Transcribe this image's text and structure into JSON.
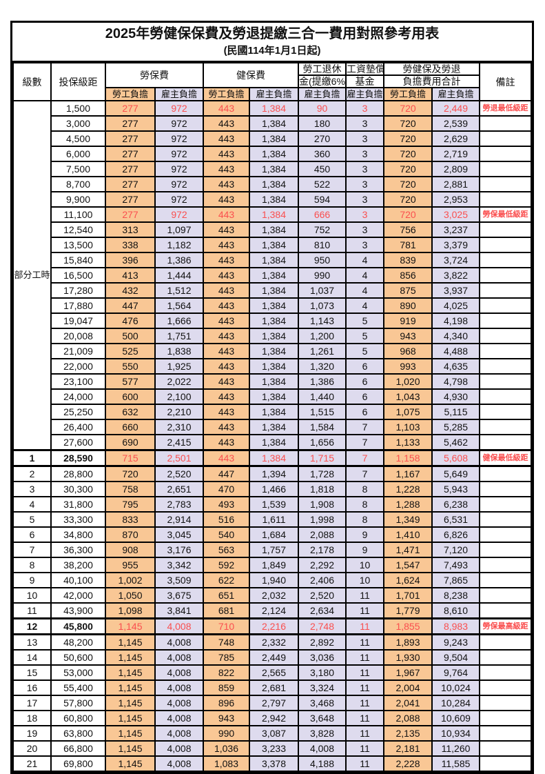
{
  "title": "2025年勞健保保費及勞退提繳三合一費用對照參考用表",
  "subtitle": "(民國114年1月1日起)",
  "colors": {
    "employee_col_bg": "#f9c795",
    "employer_col_bg": "#dedbee",
    "highlight_red": "#fa4f4f",
    "border": "#000000"
  },
  "header": {
    "level": "級數",
    "bracket": "投保級距",
    "labor_ins": "勞保費",
    "health_ins": "健保費",
    "pension_l1": "勞工退休",
    "pension_l2": "金(提繳6%)",
    "wage_fund_l1": "工資墊償",
    "wage_fund_l2": "基金",
    "total_l1": "勞健保及勞退",
    "total_l2": "負擔費用合計",
    "remark": "備註",
    "employee": "勞工負擔",
    "employer": "雇主負擔"
  },
  "part_time_label": "部分工時",
  "column_styles": [
    "orange",
    "lav",
    "orange",
    "lav",
    "lav",
    "lav",
    "orange",
    "lav"
  ],
  "rows": [
    {
      "level": "",
      "bracket": "1,500",
      "values": [
        "277",
        "972",
        "443",
        "1,384",
        "90",
        "3",
        "720",
        "2,449"
      ],
      "remark": "勞退最低級距",
      "red": true,
      "bold": false,
      "key": false
    },
    {
      "level": "",
      "bracket": "3,000",
      "values": [
        "277",
        "972",
        "443",
        "1,384",
        "180",
        "3",
        "720",
        "2,539"
      ],
      "remark": "",
      "red": false,
      "bold": false,
      "key": false
    },
    {
      "level": "",
      "bracket": "4,500",
      "values": [
        "277",
        "972",
        "443",
        "1,384",
        "270",
        "3",
        "720",
        "2,629"
      ],
      "remark": "",
      "red": false,
      "bold": false,
      "key": false
    },
    {
      "level": "",
      "bracket": "6,000",
      "values": [
        "277",
        "972",
        "443",
        "1,384",
        "360",
        "3",
        "720",
        "2,719"
      ],
      "remark": "",
      "red": false,
      "bold": false,
      "key": false
    },
    {
      "level": "",
      "bracket": "7,500",
      "values": [
        "277",
        "972",
        "443",
        "1,384",
        "450",
        "3",
        "720",
        "2,809"
      ],
      "remark": "",
      "red": false,
      "bold": false,
      "key": false
    },
    {
      "level": "",
      "bracket": "8,700",
      "values": [
        "277",
        "972",
        "443",
        "1,384",
        "522",
        "3",
        "720",
        "2,881"
      ],
      "remark": "",
      "red": false,
      "bold": false,
      "key": false
    },
    {
      "level": "",
      "bracket": "9,900",
      "values": [
        "277",
        "972",
        "443",
        "1,384",
        "594",
        "3",
        "720",
        "2,953"
      ],
      "remark": "",
      "red": false,
      "bold": false,
      "key": false
    },
    {
      "level": "",
      "bracket": "11,100",
      "values": [
        "277",
        "972",
        "443",
        "1,384",
        "666",
        "3",
        "720",
        "3,025"
      ],
      "remark": "勞保最低級距",
      "red": true,
      "bold": false,
      "key": false
    },
    {
      "level": "",
      "bracket": "12,540",
      "values": [
        "313",
        "1,097",
        "443",
        "1,384",
        "752",
        "3",
        "756",
        "3,237"
      ],
      "remark": "",
      "red": false,
      "bold": false,
      "key": false
    },
    {
      "level": "",
      "bracket": "13,500",
      "values": [
        "338",
        "1,182",
        "443",
        "1,384",
        "810",
        "3",
        "781",
        "3,379"
      ],
      "remark": "",
      "red": false,
      "bold": false,
      "key": false
    },
    {
      "level": "",
      "bracket": "15,840",
      "values": [
        "396",
        "1,386",
        "443",
        "1,384",
        "950",
        "4",
        "839",
        "3,724"
      ],
      "remark": "",
      "red": false,
      "bold": false,
      "key": false
    },
    {
      "level": "",
      "bracket": "16,500",
      "values": [
        "413",
        "1,444",
        "443",
        "1,384",
        "990",
        "4",
        "856",
        "3,822"
      ],
      "remark": "",
      "red": false,
      "bold": false,
      "key": false
    },
    {
      "level": "",
      "bracket": "17,280",
      "values": [
        "432",
        "1,512",
        "443",
        "1,384",
        "1,037",
        "4",
        "875",
        "3,937"
      ],
      "remark": "",
      "red": false,
      "bold": false,
      "key": false
    },
    {
      "level": "",
      "bracket": "17,880",
      "values": [
        "447",
        "1,564",
        "443",
        "1,384",
        "1,073",
        "4",
        "890",
        "4,025"
      ],
      "remark": "",
      "red": false,
      "bold": false,
      "key": false
    },
    {
      "level": "",
      "bracket": "19,047",
      "values": [
        "476",
        "1,666",
        "443",
        "1,384",
        "1,143",
        "5",
        "919",
        "4,198"
      ],
      "remark": "",
      "red": false,
      "bold": false,
      "key": false
    },
    {
      "level": "",
      "bracket": "20,008",
      "values": [
        "500",
        "1,751",
        "443",
        "1,384",
        "1,200",
        "5",
        "943",
        "4,340"
      ],
      "remark": "",
      "red": false,
      "bold": false,
      "key": false
    },
    {
      "level": "",
      "bracket": "21,009",
      "values": [
        "525",
        "1,838",
        "443",
        "1,384",
        "1,261",
        "5",
        "968",
        "4,488"
      ],
      "remark": "",
      "red": false,
      "bold": false,
      "key": false
    },
    {
      "level": "",
      "bracket": "22,000",
      "values": [
        "550",
        "1,925",
        "443",
        "1,384",
        "1,320",
        "6",
        "993",
        "4,635"
      ],
      "remark": "",
      "red": false,
      "bold": false,
      "key": false
    },
    {
      "level": "",
      "bracket": "23,100",
      "values": [
        "577",
        "2,022",
        "443",
        "1,384",
        "1,386",
        "6",
        "1,020",
        "4,798"
      ],
      "remark": "",
      "red": false,
      "bold": false,
      "key": false
    },
    {
      "level": "",
      "bracket": "24,000",
      "values": [
        "600",
        "2,100",
        "443",
        "1,384",
        "1,440",
        "6",
        "1,043",
        "4,930"
      ],
      "remark": "",
      "red": false,
      "bold": false,
      "key": false
    },
    {
      "level": "",
      "bracket": "25,250",
      "values": [
        "632",
        "2,210",
        "443",
        "1,384",
        "1,515",
        "6",
        "1,075",
        "5,115"
      ],
      "remark": "",
      "red": false,
      "bold": false,
      "key": false
    },
    {
      "level": "",
      "bracket": "26,400",
      "values": [
        "660",
        "2,310",
        "443",
        "1,384",
        "1,584",
        "7",
        "1,103",
        "5,285"
      ],
      "remark": "",
      "red": false,
      "bold": false,
      "key": false
    },
    {
      "level": "",
      "bracket": "27,600",
      "values": [
        "690",
        "2,415",
        "443",
        "1,384",
        "1,656",
        "7",
        "1,133",
        "5,462"
      ],
      "remark": "",
      "red": false,
      "bold": false,
      "key": false
    },
    {
      "level": "1",
      "bracket": "28,590",
      "values": [
        "715",
        "2,501",
        "443",
        "1,384",
        "1,715",
        "7",
        "1,158",
        "5,608"
      ],
      "remark": "健保最低級距",
      "red": true,
      "bold": true,
      "key": true
    },
    {
      "level": "2",
      "bracket": "28,800",
      "values": [
        "720",
        "2,520",
        "447",
        "1,394",
        "1,728",
        "7",
        "1,167",
        "5,649"
      ],
      "remark": "",
      "red": false,
      "bold": false,
      "key": false
    },
    {
      "level": "3",
      "bracket": "30,300",
      "values": [
        "758",
        "2,651",
        "470",
        "1,466",
        "1,818",
        "8",
        "1,228",
        "5,943"
      ],
      "remark": "",
      "red": false,
      "bold": false,
      "key": false
    },
    {
      "level": "4",
      "bracket": "31,800",
      "values": [
        "795",
        "2,783",
        "493",
        "1,539",
        "1,908",
        "8",
        "1,288",
        "6,238"
      ],
      "remark": "",
      "red": false,
      "bold": false,
      "key": false
    },
    {
      "level": "5",
      "bracket": "33,300",
      "values": [
        "833",
        "2,914",
        "516",
        "1,611",
        "1,998",
        "8",
        "1,349",
        "6,531"
      ],
      "remark": "",
      "red": false,
      "bold": false,
      "key": false
    },
    {
      "level": "6",
      "bracket": "34,800",
      "values": [
        "870",
        "3,045",
        "540",
        "1,684",
        "2,088",
        "9",
        "1,410",
        "6,826"
      ],
      "remark": "",
      "red": false,
      "bold": false,
      "key": false
    },
    {
      "level": "7",
      "bracket": "36,300",
      "values": [
        "908",
        "3,176",
        "563",
        "1,757",
        "2,178",
        "9",
        "1,471",
        "7,120"
      ],
      "remark": "",
      "red": false,
      "bold": false,
      "key": false
    },
    {
      "level": "8",
      "bracket": "38,200",
      "values": [
        "955",
        "3,342",
        "592",
        "1,849",
        "2,292",
        "10",
        "1,547",
        "7,493"
      ],
      "remark": "",
      "red": false,
      "bold": false,
      "key": false
    },
    {
      "level": "9",
      "bracket": "40,100",
      "values": [
        "1,002",
        "3,509",
        "622",
        "1,940",
        "2,406",
        "10",
        "1,624",
        "7,865"
      ],
      "remark": "",
      "red": false,
      "bold": false,
      "key": false
    },
    {
      "level": "10",
      "bracket": "42,000",
      "values": [
        "1,050",
        "3,675",
        "651",
        "2,032",
        "2,520",
        "11",
        "1,701",
        "8,238"
      ],
      "remark": "",
      "red": false,
      "bold": false,
      "key": false
    },
    {
      "level": "11",
      "bracket": "43,900",
      "values": [
        "1,098",
        "3,841",
        "681",
        "2,124",
        "2,634",
        "11",
        "1,779",
        "8,610"
      ],
      "remark": "",
      "red": false,
      "bold": false,
      "key": false
    },
    {
      "level": "12",
      "bracket": "45,800",
      "values": [
        "1,145",
        "4,008",
        "710",
        "2,216",
        "2,748",
        "11",
        "1,855",
        "8,983"
      ],
      "remark": "勞保最高級距",
      "red": true,
      "bold": true,
      "key": true
    },
    {
      "level": "13",
      "bracket": "48,200",
      "values": [
        "1,145",
        "4,008",
        "748",
        "2,332",
        "2,892",
        "11",
        "1,893",
        "9,243"
      ],
      "remark": "",
      "red": false,
      "bold": false,
      "key": false
    },
    {
      "level": "14",
      "bracket": "50,600",
      "values": [
        "1,145",
        "4,008",
        "785",
        "2,449",
        "3,036",
        "11",
        "1,930",
        "9,504"
      ],
      "remark": "",
      "red": false,
      "bold": false,
      "key": false
    },
    {
      "level": "15",
      "bracket": "53,000",
      "values": [
        "1,145",
        "4,008",
        "822",
        "2,565",
        "3,180",
        "11",
        "1,967",
        "9,764"
      ],
      "remark": "",
      "red": false,
      "bold": false,
      "key": false
    },
    {
      "level": "16",
      "bracket": "55,400",
      "values": [
        "1,145",
        "4,008",
        "859",
        "2,681",
        "3,324",
        "11",
        "2,004",
        "10,024"
      ],
      "remark": "",
      "red": false,
      "bold": false,
      "key": false
    },
    {
      "level": "17",
      "bracket": "57,800",
      "values": [
        "1,145",
        "4,008",
        "896",
        "2,797",
        "3,468",
        "11",
        "2,041",
        "10,284"
      ],
      "remark": "",
      "red": false,
      "bold": false,
      "key": false
    },
    {
      "level": "18",
      "bracket": "60,800",
      "values": [
        "1,145",
        "4,008",
        "943",
        "2,942",
        "3,648",
        "11",
        "2,088",
        "10,609"
      ],
      "remark": "",
      "red": false,
      "bold": false,
      "key": false
    },
    {
      "level": "19",
      "bracket": "63,800",
      "values": [
        "1,145",
        "4,008",
        "990",
        "3,087",
        "3,828",
        "11",
        "2,135",
        "10,934"
      ],
      "remark": "",
      "red": false,
      "bold": false,
      "key": false
    },
    {
      "level": "20",
      "bracket": "66,800",
      "values": [
        "1,145",
        "4,008",
        "1,036",
        "3,233",
        "4,008",
        "11",
        "2,181",
        "11,260"
      ],
      "remark": "",
      "red": false,
      "bold": false,
      "key": false
    },
    {
      "level": "21",
      "bracket": "69,800",
      "values": [
        "1,145",
        "4,008",
        "1,083",
        "3,378",
        "4,188",
        "11",
        "2,228",
        "11,585"
      ],
      "remark": "",
      "red": false,
      "bold": false,
      "key": false
    }
  ]
}
